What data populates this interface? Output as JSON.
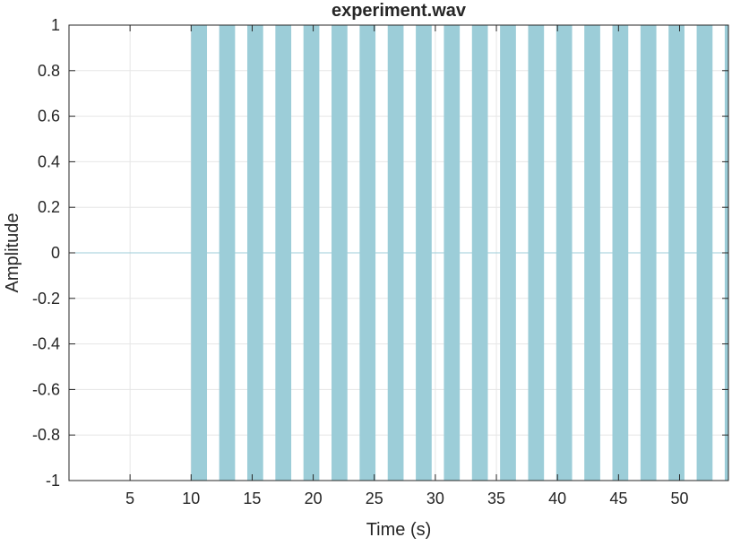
{
  "chart_data": {
    "type": "area",
    "title": "experiment.wav",
    "xlabel": "Time (s)",
    "ylabel": "Amplitude",
    "xlim": [
      0,
      54
    ],
    "ylim": [
      -1,
      1
    ],
    "xticks": [
      "5",
      "10",
      "15",
      "20",
      "25",
      "30",
      "35",
      "40",
      "45",
      "50"
    ],
    "xtick_values": [
      5,
      10,
      15,
      20,
      25,
      30,
      35,
      40,
      45,
      50
    ],
    "yticks": [
      "-1",
      "-0.8",
      "-0.6",
      "-0.4",
      "-0.2",
      "0",
      "0.2",
      "0.4",
      "0.6",
      "0.8",
      "1"
    ],
    "ytick_values": [
      -1,
      -0.8,
      -0.6,
      -0.4,
      -0.2,
      0,
      0.2,
      0.4,
      0.6,
      0.8,
      1
    ],
    "grid": true,
    "series_color": "#9ccdd8",
    "bursts": [
      {
        "start": 10.0,
        "end": 11.3,
        "amplitude": 1
      },
      {
        "start": 12.3,
        "end": 13.6,
        "amplitude": 1
      },
      {
        "start": 14.6,
        "end": 15.9,
        "amplitude": 1
      },
      {
        "start": 16.9,
        "end": 18.2,
        "amplitude": 1
      },
      {
        "start": 19.2,
        "end": 20.5,
        "amplitude": 1
      },
      {
        "start": 21.5,
        "end": 22.8,
        "amplitude": 1
      },
      {
        "start": 23.8,
        "end": 25.1,
        "amplitude": 1
      },
      {
        "start": 26.1,
        "end": 27.4,
        "amplitude": 1
      },
      {
        "start": 28.4,
        "end": 29.7,
        "amplitude": 1
      },
      {
        "start": 30.7,
        "end": 32.0,
        "amplitude": 1
      },
      {
        "start": 33.0,
        "end": 34.3,
        "amplitude": 1
      },
      {
        "start": 35.3,
        "end": 36.6,
        "amplitude": 1
      },
      {
        "start": 37.6,
        "end": 38.9,
        "amplitude": 1
      },
      {
        "start": 39.9,
        "end": 41.2,
        "amplitude": 1
      },
      {
        "start": 42.2,
        "end": 43.5,
        "amplitude": 1
      },
      {
        "start": 44.5,
        "end": 45.8,
        "amplitude": 1
      },
      {
        "start": 46.8,
        "end": 48.1,
        "amplitude": 1
      },
      {
        "start": 49.1,
        "end": 50.4,
        "amplitude": 1
      },
      {
        "start": 51.4,
        "end": 52.7,
        "amplitude": 1
      },
      {
        "start": 53.7,
        "end": 54.0,
        "amplitude": 1
      }
    ]
  }
}
